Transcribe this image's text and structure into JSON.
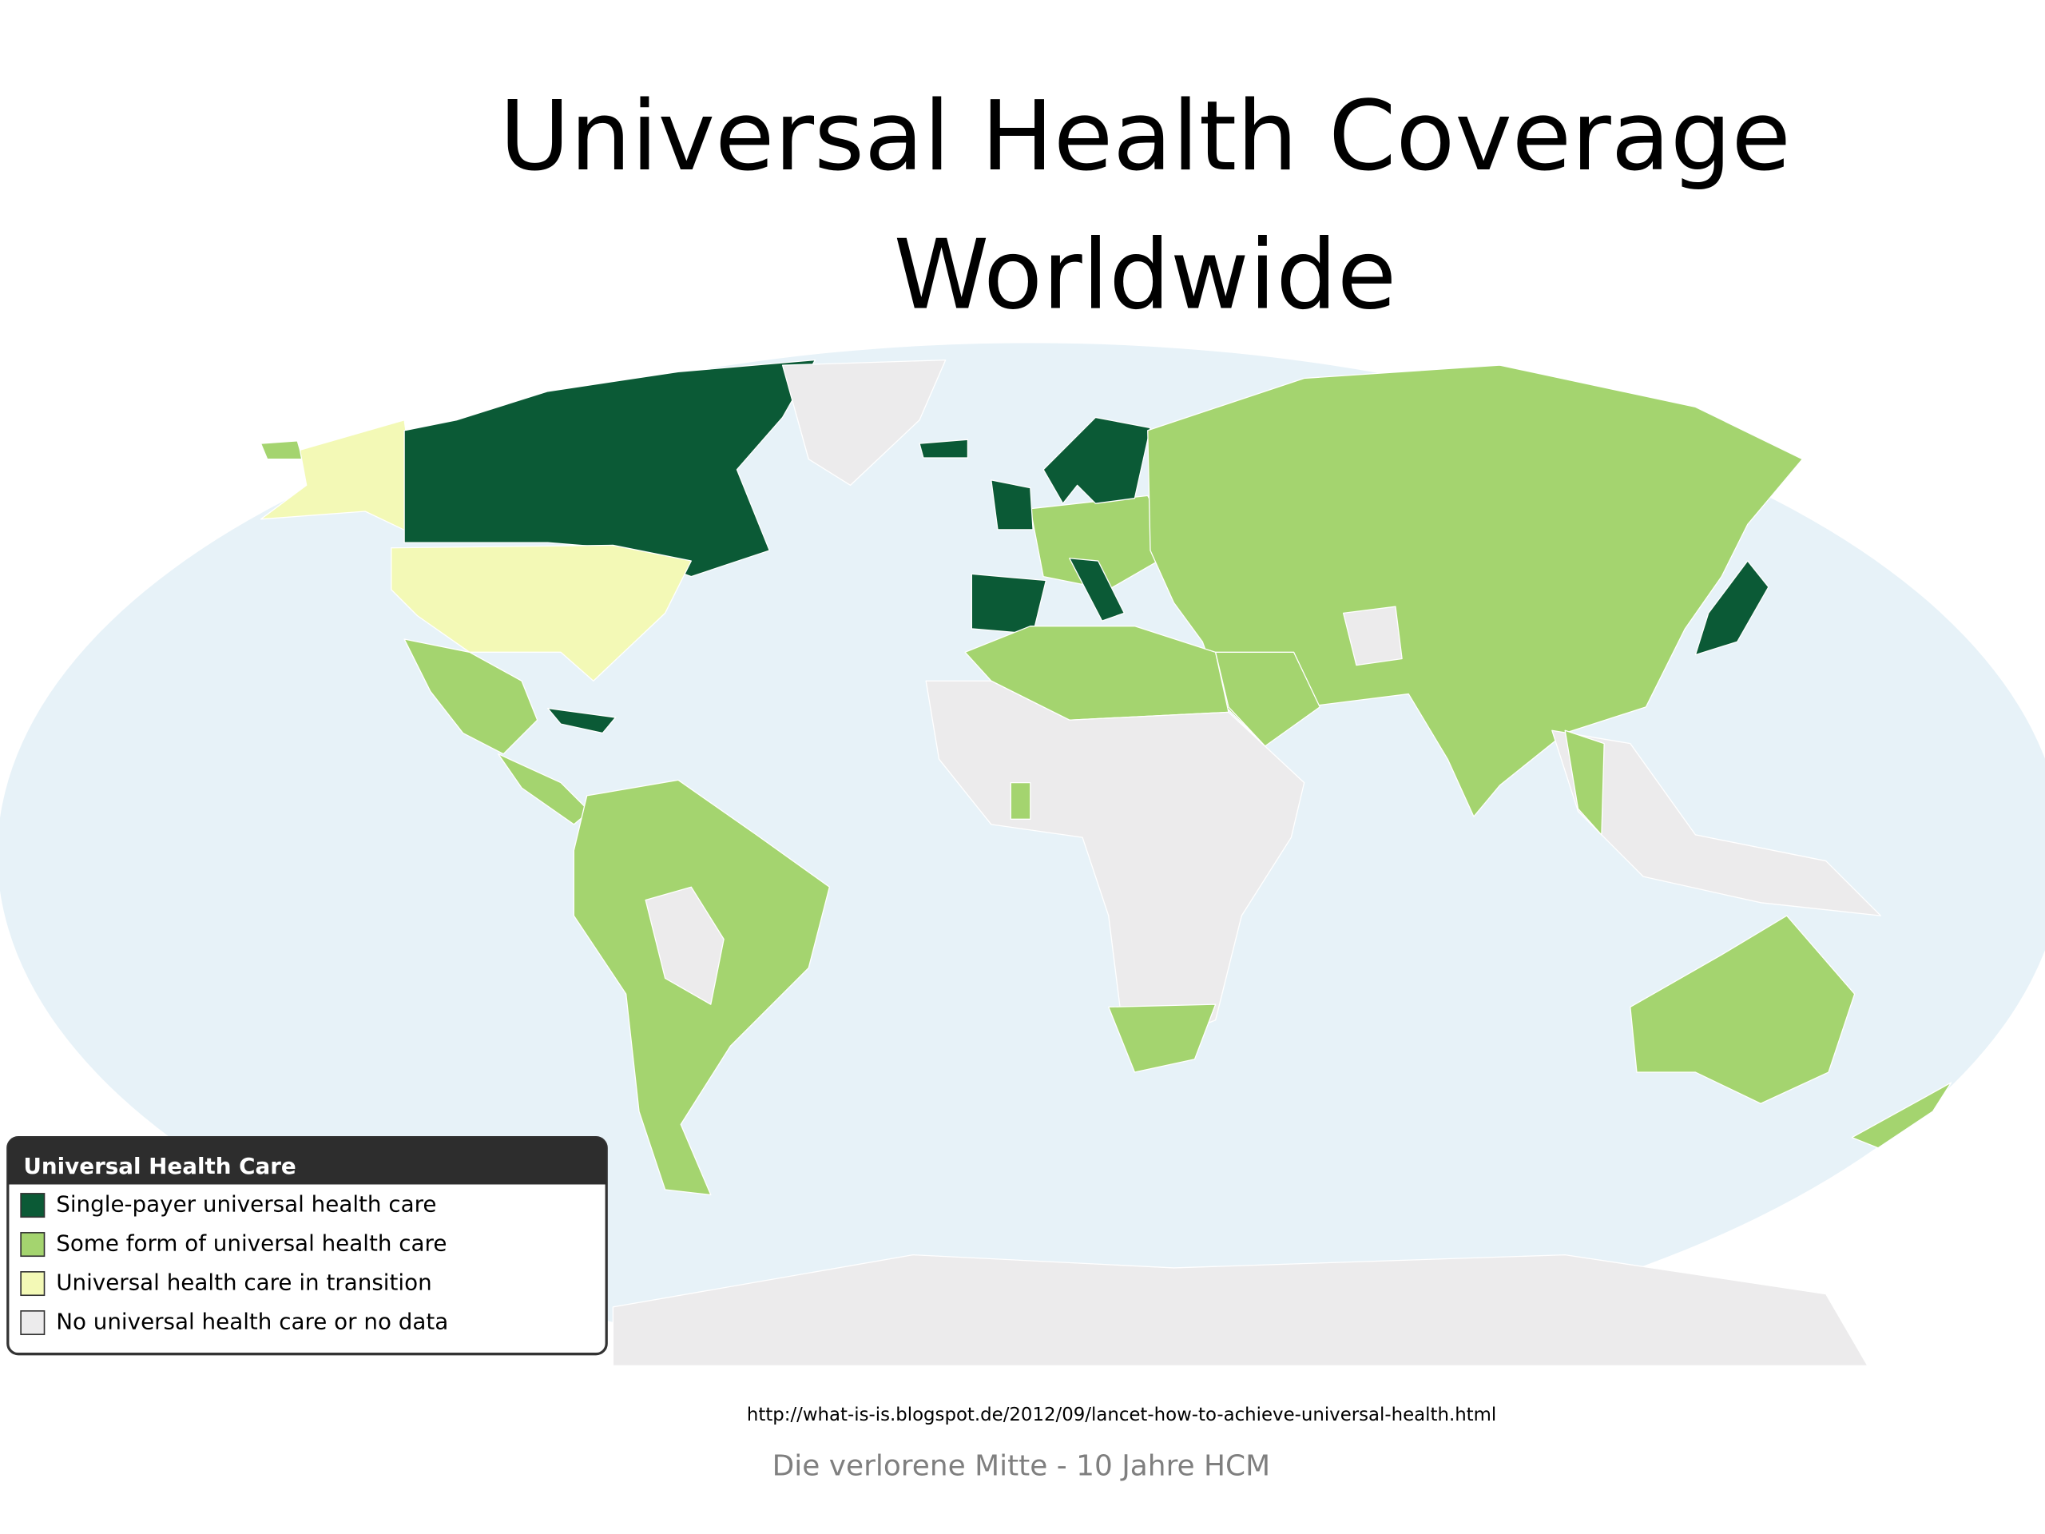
{
  "title": {
    "lines": [
      "Universal Health Coverage",
      "Worldwide"
    ]
  },
  "legend": {
    "title": "Universal Health Care",
    "items": [
      {
        "label": "Single-payer universal health care",
        "color": "#0b5a36"
      },
      {
        "label": "Some form of universal health care",
        "color": "#a4d46f"
      },
      {
        "label": "Universal health care in transition",
        "color": "#f3f9b6"
      },
      {
        "label": "No universal health care or no data",
        "color": "#ecebec"
      }
    ]
  },
  "source": "http://what-is-is.blogspot.de/2012/09/lancet-how-to-achieve-universal-health.html",
  "footer": "Die verlorene Mitte - 10 Jahre HCM"
}
